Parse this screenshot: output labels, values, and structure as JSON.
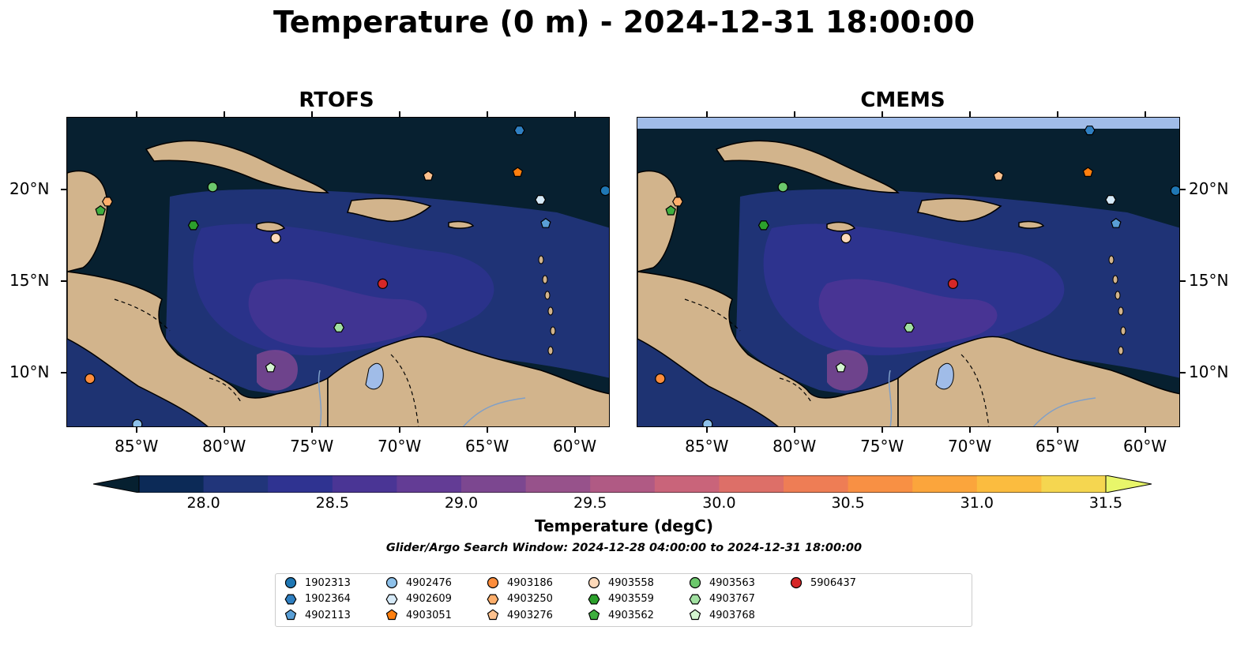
{
  "title": "Temperature (0 m) - 2024-12-31 18:00:00",
  "panels": [
    {
      "title": "RTOFS"
    },
    {
      "title": "CMEMS"
    }
  ],
  "axes": {
    "x_ticks": [
      "85°W",
      "80°W",
      "75°W",
      "70°W",
      "65°W",
      "60°W"
    ],
    "y_ticks": [
      "20°N",
      "15°N",
      "10°N"
    ],
    "lon_range": [
      -89,
      -58
    ],
    "lat_range": [
      7,
      24
    ]
  },
  "colorbar": {
    "label": "Temperature (degC)",
    "tick_labels": [
      "28.0",
      "28.5",
      "29.0",
      "29.5",
      "30.0",
      "30.5",
      "31.0",
      "31.5"
    ],
    "min": 28.0,
    "max": 31.5,
    "colors": [
      "#0c2a57",
      "#21357a",
      "#2f3391",
      "#4a3595",
      "#633c95",
      "#7c4790",
      "#97528b",
      "#b05a84",
      "#c9647a",
      "#dd6f68",
      "#ee7d55",
      "#f89044",
      "#fba53c",
      "#fbbc3f",
      "#f5d650"
    ],
    "under_color": "#062030",
    "over_color": "#e8f66a"
  },
  "search_window": "Glider/Argo Search Window: 2024-12-28 04:00:00 to 2024-12-31 18:00:00",
  "colors": {
    "ocean_base": "#072030",
    "land": "#d2b48c",
    "lake": "#a0bce8",
    "cmems_top_band": "#a0bce8"
  },
  "legend": [
    {
      "id": "1902313",
      "marker": "circle",
      "color": "#1f77b4"
    },
    {
      "id": "1902364",
      "marker": "hexagon",
      "color": "#2f7fc1"
    },
    {
      "id": "4902113",
      "marker": "pentagon",
      "color": "#5a9fd6"
    },
    {
      "id": "4902476",
      "marker": "circle",
      "color": "#8ec1ea"
    },
    {
      "id": "4902609",
      "marker": "hexagon",
      "color": "#d6eaf8"
    },
    {
      "id": "4903051",
      "marker": "pentagon",
      "color": "#ff7f0e"
    },
    {
      "id": "4903186",
      "marker": "circle",
      "color": "#fd8d3c"
    },
    {
      "id": "4903250",
      "marker": "hexagon",
      "color": "#fdae6b"
    },
    {
      "id": "4903276",
      "marker": "pentagon",
      "color": "#fdc18e"
    },
    {
      "id": "4903558",
      "marker": "circle",
      "color": "#fdd9b9"
    },
    {
      "id": "4903559",
      "marker": "hexagon",
      "color": "#2ca02c"
    },
    {
      "id": "4903562",
      "marker": "pentagon",
      "color": "#3fae3f"
    },
    {
      "id": "4903563",
      "marker": "circle",
      "color": "#6cc86c"
    },
    {
      "id": "4903767",
      "marker": "hexagon",
      "color": "#a1e0a1"
    },
    {
      "id": "4903768",
      "marker": "pentagon",
      "color": "#d4f5d0"
    },
    {
      "id": "5906437",
      "marker": "circle",
      "color": "#d62728"
    }
  ],
  "floats": [
    {
      "id": "1902313",
      "lon": -58.3,
      "lat": 20.0
    },
    {
      "id": "1902364",
      "lon": -63.2,
      "lat": 23.3
    },
    {
      "id": "4902113",
      "lon": -61.7,
      "lat": 18.2
    },
    {
      "id": "4902476",
      "lon": -85.0,
      "lat": 7.2
    },
    {
      "id": "4902609",
      "lon": -62.0,
      "lat": 19.5
    },
    {
      "id": "4903051",
      "lon": -63.3,
      "lat": 21.0
    },
    {
      "id": "4903186",
      "lon": -87.7,
      "lat": 9.7
    },
    {
      "id": "4903250",
      "lon": -86.7,
      "lat": 19.4
    },
    {
      "id": "4903276",
      "lon": -68.4,
      "lat": 20.8
    },
    {
      "id": "4903558",
      "lon": -77.1,
      "lat": 17.4
    },
    {
      "id": "4903559",
      "lon": -81.8,
      "lat": 18.1
    },
    {
      "id": "4903562",
      "lon": -87.1,
      "lat": 18.9
    },
    {
      "id": "4903563",
      "lon": -80.7,
      "lat": 20.2
    },
    {
      "id": "4903767",
      "lon": -73.5,
      "lat": 12.5
    },
    {
      "id": "4903768",
      "lon": -77.4,
      "lat": 10.3
    },
    {
      "id": "5906437",
      "lon": -71.0,
      "lat": 14.9
    }
  ]
}
